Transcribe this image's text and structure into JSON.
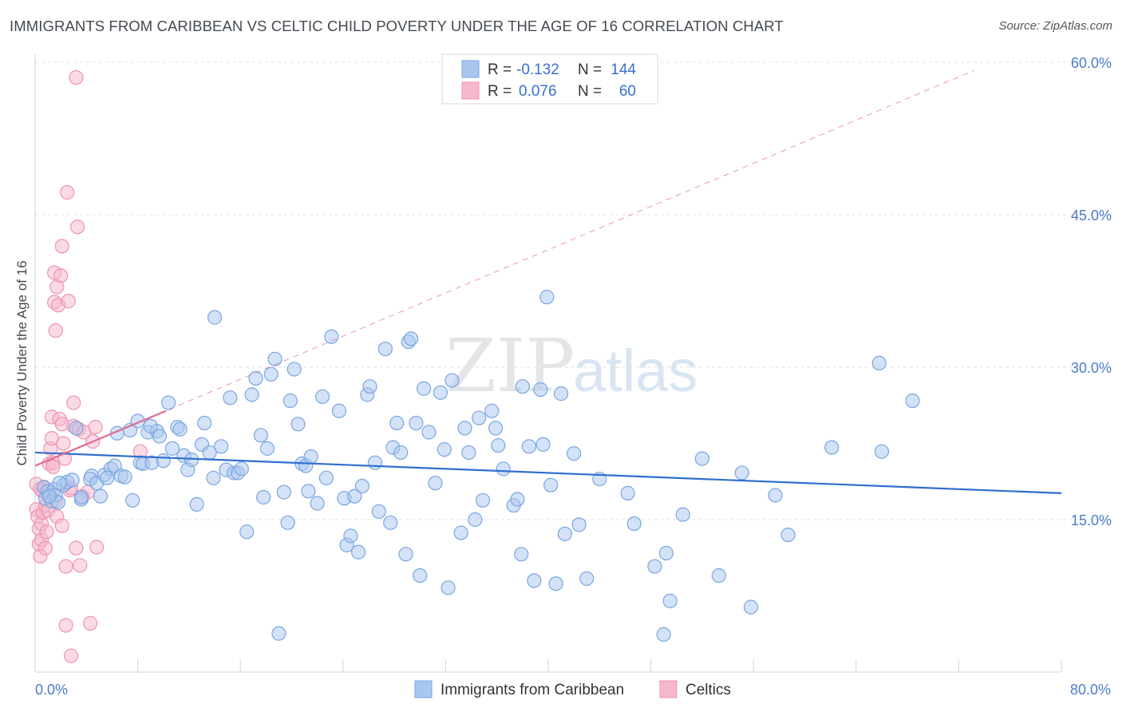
{
  "title": "IMMIGRANTS FROM CARIBBEAN VS CELTIC CHILD POVERTY UNDER THE AGE OF 16 CORRELATION CHART",
  "source": "Source: ZipAtlas.com",
  "watermark": {
    "zip": "ZIP",
    "atlas": "atlas"
  },
  "colors": {
    "blue_fill": "#a9c6ef",
    "blue_stroke": "#7aa6e0",
    "blue_line": "#2f6fce",
    "pink_fill": "#f6b8cb",
    "pink_stroke": "#ee93b0",
    "pink_line": "#e06a92",
    "grid": "#dde0e6",
    "tick_text": "#4a7cc9"
  },
  "legend": {
    "rows": [
      {
        "r_label": "R =",
        "r_value": "-0.132",
        "n_label": "N =",
        "n_value": "144"
      },
      {
        "r_label": "R =",
        "r_value": "0.076",
        "n_label": "N =",
        "n_value": "60"
      }
    ]
  },
  "bottom_legend": [
    "Immigrants from Caribbean",
    "Celtics"
  ],
  "chart_data": {
    "type": "scatter",
    "xlabel": "",
    "ylabel": "Child Poverty Under the Age of 16",
    "xlim": [
      0,
      80
    ],
    "ylim": [
      0,
      60
    ],
    "x_tick_labels": [
      "0.0%",
      "80.0%"
    ],
    "y_ticks": [
      15,
      30,
      45,
      60
    ],
    "y_tick_labels": [
      "15.0%",
      "30.0%",
      "45.0%",
      "60.0%"
    ],
    "grid": true,
    "legend_position": "top-center",
    "series": [
      {
        "name": "Immigrants from Caribbean",
        "R": -0.132,
        "N": 144,
        "trend": {
          "x": [
            0,
            80
          ],
          "y": [
            21.6,
            17.6
          ]
        },
        "points": [
          [
            0.7,
            18.2
          ],
          [
            0.8,
            17.1
          ],
          [
            1.0,
            17.8
          ],
          [
            1.3,
            16.8
          ],
          [
            1.5,
            18.0
          ],
          [
            1.6,
            17.4
          ],
          [
            1.8,
            16.7
          ],
          [
            2.2,
            18.4
          ],
          [
            2.5,
            18.7
          ],
          [
            2.9,
            18.9
          ],
          [
            3.6,
            17.0
          ],
          [
            3.6,
            17.2
          ],
          [
            3.2,
            24.0
          ],
          [
            4.4,
            19.3
          ],
          [
            4.3,
            19.0
          ],
          [
            4.8,
            18.6
          ],
          [
            5.1,
            17.3
          ],
          [
            5.4,
            19.4
          ],
          [
            5.9,
            20.0
          ],
          [
            6.2,
            20.3
          ],
          [
            6.4,
            23.5
          ],
          [
            6.7,
            19.3
          ],
          [
            7.0,
            19.2
          ],
          [
            7.4,
            23.8
          ],
          [
            7.6,
            16.9
          ],
          [
            8.0,
            24.7
          ],
          [
            8.2,
            20.6
          ],
          [
            8.4,
            20.5
          ],
          [
            8.8,
            23.6
          ],
          [
            9.1,
            20.6
          ],
          [
            9.5,
            23.7
          ],
          [
            9.7,
            23.2
          ],
          [
            10.0,
            20.8
          ],
          [
            10.4,
            26.5
          ],
          [
            10.7,
            22.0
          ],
          [
            11.1,
            24.1
          ],
          [
            11.3,
            23.9
          ],
          [
            11.6,
            21.3
          ],
          [
            11.9,
            19.9
          ],
          [
            12.2,
            20.9
          ],
          [
            12.6,
            16.5
          ],
          [
            13.0,
            22.4
          ],
          [
            13.2,
            24.5
          ],
          [
            13.6,
            21.6
          ],
          [
            13.9,
            19.1
          ],
          [
            14.0,
            34.9
          ],
          [
            14.5,
            22.2
          ],
          [
            14.9,
            19.9
          ],
          [
            15.2,
            27.0
          ],
          [
            15.5,
            19.6
          ],
          [
            15.8,
            19.6
          ],
          [
            16.1,
            20.0
          ],
          [
            16.5,
            13.8
          ],
          [
            16.9,
            27.3
          ],
          [
            17.2,
            28.9
          ],
          [
            17.6,
            23.3
          ],
          [
            17.8,
            17.2
          ],
          [
            18.1,
            22.0
          ],
          [
            18.4,
            29.3
          ],
          [
            18.7,
            30.8
          ],
          [
            19.0,
            3.8
          ],
          [
            19.4,
            17.7
          ],
          [
            19.7,
            14.7
          ],
          [
            19.9,
            26.7
          ],
          [
            20.2,
            29.8
          ],
          [
            20.5,
            24.4
          ],
          [
            20.8,
            20.5
          ],
          [
            21.1,
            20.3
          ],
          [
            21.3,
            17.8
          ],
          [
            21.5,
            21.2
          ],
          [
            22.0,
            16.6
          ],
          [
            22.4,
            27.1
          ],
          [
            22.7,
            19.1
          ],
          [
            23.1,
            33.0
          ],
          [
            23.7,
            25.7
          ],
          [
            24.1,
            17.1
          ],
          [
            24.3,
            12.5
          ],
          [
            24.6,
            13.4
          ],
          [
            24.9,
            17.3
          ],
          [
            25.2,
            11.8
          ],
          [
            25.5,
            18.3
          ],
          [
            25.9,
            27.3
          ],
          [
            26.1,
            28.1
          ],
          [
            26.5,
            20.6
          ],
          [
            26.8,
            15.8
          ],
          [
            27.3,
            31.8
          ],
          [
            27.7,
            14.7
          ],
          [
            27.9,
            22.1
          ],
          [
            28.2,
            24.5
          ],
          [
            28.5,
            21.6
          ],
          [
            28.9,
            11.6
          ],
          [
            29.1,
            32.5
          ],
          [
            29.3,
            32.8
          ],
          [
            29.7,
            24.5
          ],
          [
            30.0,
            9.5
          ],
          [
            30.3,
            27.9
          ],
          [
            30.7,
            23.6
          ],
          [
            31.2,
            18.6
          ],
          [
            31.6,
            27.5
          ],
          [
            31.9,
            21.9
          ],
          [
            32.2,
            8.3
          ],
          [
            32.5,
            28.7
          ],
          [
            33.2,
            13.7
          ],
          [
            33.5,
            24.0
          ],
          [
            33.8,
            21.6
          ],
          [
            34.3,
            15.0
          ],
          [
            34.6,
            25.0
          ],
          [
            34.9,
            16.9
          ],
          [
            35.6,
            25.7
          ],
          [
            35.9,
            24.0
          ],
          [
            36.1,
            22.3
          ],
          [
            36.5,
            20.0
          ],
          [
            37.3,
            16.4
          ],
          [
            37.6,
            17.0
          ],
          [
            37.9,
            11.6
          ],
          [
            38.0,
            28.1
          ],
          [
            38.5,
            22.2
          ],
          [
            38.9,
            9.0
          ],
          [
            39.4,
            27.8
          ],
          [
            39.6,
            22.4
          ],
          [
            39.9,
            36.9
          ],
          [
            40.2,
            18.4
          ],
          [
            40.6,
            8.7
          ],
          [
            41.0,
            27.4
          ],
          [
            41.3,
            13.6
          ],
          [
            42.0,
            21.5
          ],
          [
            42.4,
            14.5
          ],
          [
            43.0,
            9.2
          ],
          [
            44.0,
            19.0
          ],
          [
            46.2,
            17.6
          ],
          [
            46.7,
            14.6
          ],
          [
            48.3,
            10.4
          ],
          [
            49.0,
            3.7
          ],
          [
            49.2,
            11.7
          ],
          [
            49.5,
            7.0
          ],
          [
            50.5,
            15.5
          ],
          [
            52.0,
            21.0
          ],
          [
            53.3,
            9.5
          ],
          [
            55.1,
            19.6
          ],
          [
            55.8,
            6.4
          ],
          [
            57.7,
            17.4
          ],
          [
            58.7,
            13.5
          ],
          [
            62.1,
            22.1
          ],
          [
            65.8,
            30.4
          ],
          [
            66.0,
            21.7
          ],
          [
            68.4,
            26.7
          ],
          [
            1.1,
            17.3
          ],
          [
            1.9,
            18.6
          ],
          [
            5.6,
            19.1
          ],
          [
            9.0,
            24.2
          ]
        ]
      },
      {
        "name": "Celtics",
        "R": 0.076,
        "N": 60,
        "trend": {
          "x": [
            0,
            10.2
          ],
          "y": [
            20.3,
            25.7
          ]
        },
        "trend_extended": {
          "x": [
            0,
            73.2
          ],
          "y": [
            20.3,
            59.2
          ]
        },
        "points": [
          [
            0.1,
            18.5
          ],
          [
            0.1,
            16.0
          ],
          [
            0.2,
            15.3
          ],
          [
            0.3,
            14.1
          ],
          [
            0.3,
            12.6
          ],
          [
            0.4,
            11.4
          ],
          [
            0.5,
            14.6
          ],
          [
            0.5,
            13.0
          ],
          [
            0.6,
            17.8
          ],
          [
            0.6,
            15.7
          ],
          [
            0.7,
            18.1
          ],
          [
            0.8,
            16.4
          ],
          [
            0.8,
            12.2
          ],
          [
            0.9,
            13.8
          ],
          [
            1.0,
            17.4
          ],
          [
            1.0,
            15.9
          ],
          [
            1.1,
            20.5
          ],
          [
            1.2,
            17.6
          ],
          [
            1.2,
            22.0
          ],
          [
            1.3,
            25.1
          ],
          [
            1.3,
            23.0
          ],
          [
            1.4,
            20.6
          ],
          [
            1.5,
            39.3
          ],
          [
            1.5,
            36.4
          ],
          [
            1.6,
            33.6
          ],
          [
            1.6,
            16.8
          ],
          [
            1.7,
            15.3
          ],
          [
            1.7,
            37.9
          ],
          [
            1.8,
            36.1
          ],
          [
            1.9,
            24.9
          ],
          [
            2.0,
            39.0
          ],
          [
            2.1,
            41.9
          ],
          [
            2.1,
            14.4
          ],
          [
            2.1,
            24.4
          ],
          [
            2.2,
            22.5
          ],
          [
            2.3,
            21.0
          ],
          [
            2.4,
            4.6
          ],
          [
            2.4,
            10.4
          ],
          [
            2.5,
            47.2
          ],
          [
            2.6,
            36.5
          ],
          [
            2.7,
            17.9
          ],
          [
            2.8,
            1.6
          ],
          [
            2.8,
            18.1
          ],
          [
            3.0,
            24.2
          ],
          [
            3.0,
            26.5
          ],
          [
            3.2,
            12.2
          ],
          [
            3.2,
            58.5
          ],
          [
            3.3,
            43.8
          ],
          [
            3.4,
            23.9
          ],
          [
            3.5,
            10.5
          ],
          [
            3.7,
            17.3
          ],
          [
            3.8,
            23.6
          ],
          [
            4.1,
            17.7
          ],
          [
            4.3,
            4.8
          ],
          [
            4.5,
            22.7
          ],
          [
            4.7,
            24.1
          ],
          [
            4.8,
            12.3
          ],
          [
            8.2,
            21.7
          ],
          [
            0.4,
            18.0
          ],
          [
            1.4,
            20.2
          ]
        ]
      }
    ]
  }
}
